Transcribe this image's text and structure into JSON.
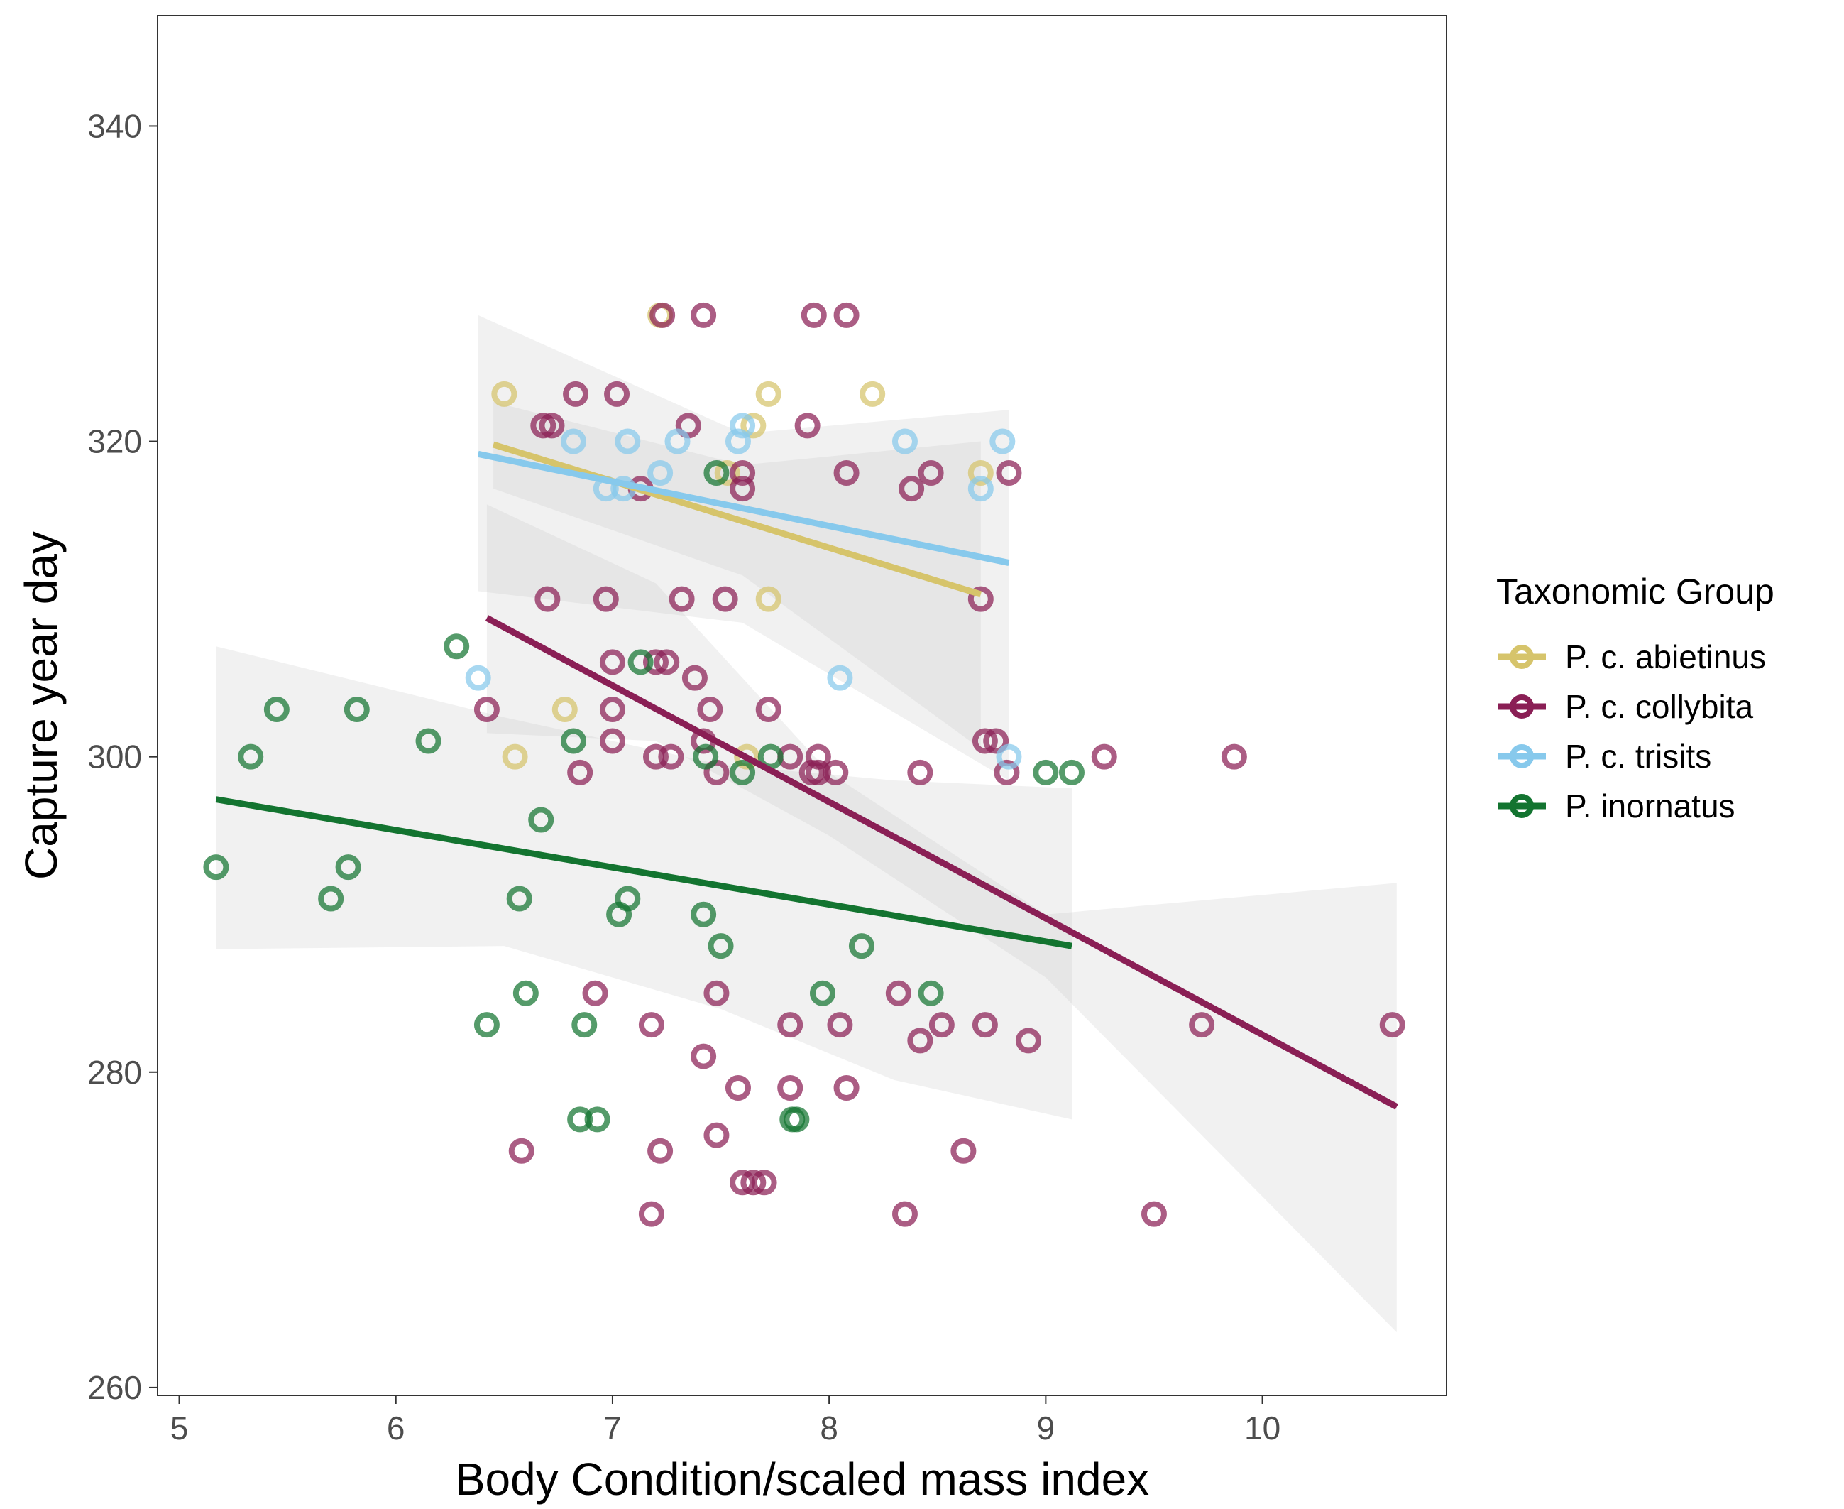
{
  "chart_data": {
    "type": "scatter",
    "title": "",
    "xlabel": "Body Condition/scaled mass index",
    "ylabel": "Capture year day",
    "xlim": [
      4.9,
      10.85
    ],
    "ylim": [
      259.5,
      347
    ],
    "x_ticks": [
      "5",
      "6",
      "7",
      "8",
      "9",
      "10"
    ],
    "y_ticks": [
      "260",
      "280",
      "300",
      "320",
      "340"
    ],
    "grid": false,
    "legend": {
      "title": "Taxonomic Group",
      "position": "right"
    },
    "series": [
      {
        "name": "P. c. abietinus",
        "color": "#D6C46B",
        "points": [
          [
            6.5,
            323
          ],
          [
            6.55,
            300
          ],
          [
            6.78,
            303
          ],
          [
            7.22,
            328
          ],
          [
            7.53,
            318
          ],
          [
            7.62,
            300
          ],
          [
            7.65,
            321
          ],
          [
            7.72,
            323
          ],
          [
            7.72,
            310
          ],
          [
            8.2,
            323
          ],
          [
            8.7,
            318
          ]
        ],
        "trend": [
          [
            6.45,
            319.8
          ],
          [
            8.7,
            310.3
          ]
        ],
        "ci_upper": [
          [
            6.45,
            322.5
          ],
          [
            7.6,
            318.5
          ],
          [
            8.7,
            320
          ]
        ],
        "ci_lower": [
          [
            6.45,
            317
          ],
          [
            7.6,
            311.5
          ],
          [
            8.7,
            300.5
          ]
        ]
      },
      {
        "name": "P. c. collybita",
        "color": "#8A1F55",
        "points": [
          [
            6.42,
            303
          ],
          [
            6.68,
            321
          ],
          [
            6.72,
            321
          ],
          [
            6.83,
            323
          ],
          [
            6.7,
            310
          ],
          [
            6.97,
            310
          ],
          [
            7.0,
            306
          ],
          [
            7.0,
            303
          ],
          [
            7.0,
            301
          ],
          [
            7.02,
            323
          ],
          [
            7.13,
            317
          ],
          [
            7.2,
            306
          ],
          [
            7.25,
            306
          ],
          [
            7.2,
            300
          ],
          [
            7.27,
            300
          ],
          [
            7.32,
            310
          ],
          [
            7.35,
            321
          ],
          [
            7.38,
            305
          ],
          [
            7.42,
            301
          ],
          [
            7.45,
            303
          ],
          [
            7.48,
            299
          ],
          [
            7.52,
            310
          ],
          [
            7.6,
            318
          ],
          [
            7.6,
            317
          ],
          [
            7.72,
            303
          ],
          [
            7.82,
            300
          ],
          [
            7.9,
            321
          ],
          [
            7.92,
            299
          ],
          [
            7.95,
            300
          ],
          [
            7.95,
            299
          ],
          [
            8.03,
            299
          ],
          [
            8.08,
            318
          ],
          [
            8.38,
            317
          ],
          [
            8.42,
            299
          ],
          [
            8.47,
            318
          ],
          [
            8.7,
            310
          ],
          [
            8.72,
            301
          ],
          [
            8.77,
            301
          ],
          [
            8.82,
            299
          ],
          [
            8.83,
            318
          ],
          [
            9.27,
            300
          ],
          [
            9.87,
            300
          ],
          [
            7.23,
            328
          ],
          [
            7.42,
            328
          ],
          [
            7.93,
            328
          ],
          [
            8.08,
            328
          ],
          [
            6.85,
            299
          ],
          [
            6.92,
            285
          ],
          [
            7.18,
            283
          ],
          [
            7.42,
            281
          ],
          [
            7.48,
            285
          ],
          [
            7.58,
            279
          ],
          [
            7.82,
            283
          ],
          [
            7.82,
            279
          ],
          [
            8.05,
            283
          ],
          [
            8.08,
            279
          ],
          [
            8.32,
            285
          ],
          [
            8.42,
            282
          ],
          [
            8.52,
            283
          ],
          [
            8.72,
            283
          ],
          [
            8.92,
            282
          ],
          [
            9.72,
            283
          ],
          [
            10.6,
            283
          ],
          [
            6.58,
            275
          ],
          [
            7.22,
            275
          ],
          [
            7.48,
            276
          ],
          [
            7.6,
            273
          ],
          [
            7.65,
            273
          ],
          [
            7.7,
            273
          ],
          [
            7.18,
            271
          ],
          [
            8.35,
            271
          ],
          [
            9.5,
            271
          ],
          [
            8.62,
            275
          ]
        ],
        "trend": [
          [
            6.42,
            308.8
          ],
          [
            10.62,
            277.8
          ]
        ],
        "ci_upper": [
          [
            6.42,
            316
          ],
          [
            7.2,
            311
          ],
          [
            8.0,
            299
          ],
          [
            9.0,
            290
          ],
          [
            10.62,
            292
          ]
        ],
        "ci_lower": [
          [
            6.42,
            301.5
          ],
          [
            7.2,
            301
          ],
          [
            8.0,
            295
          ],
          [
            9.0,
            286
          ],
          [
            10.62,
            263.5
          ]
        ]
      },
      {
        "name": "P. c. trisits",
        "color": "#87C9EC",
        "points": [
          [
            6.38,
            305
          ],
          [
            6.82,
            320
          ],
          [
            6.97,
            317
          ],
          [
            7.05,
            317
          ],
          [
            7.07,
            320
          ],
          [
            7.22,
            318
          ],
          [
            7.3,
            320
          ],
          [
            7.58,
            320
          ],
          [
            7.6,
            321
          ],
          [
            8.05,
            305
          ],
          [
            8.35,
            320
          ],
          [
            8.7,
            317
          ],
          [
            8.8,
            320
          ],
          [
            8.83,
            300
          ]
        ],
        "trend": [
          [
            6.38,
            319.2
          ],
          [
            8.83,
            312.3
          ]
        ],
        "ci_upper": [
          [
            6.38,
            328
          ],
          [
            7.6,
            320.5
          ],
          [
            8.83,
            322
          ]
        ],
        "ci_lower": [
          [
            6.38,
            310.5
          ],
          [
            7.6,
            308.5
          ],
          [
            8.83,
            298.5
          ]
        ]
      },
      {
        "name": "P. inornatus",
        "color": "#137430",
        "points": [
          [
            5.17,
            293
          ],
          [
            5.33,
            300
          ],
          [
            5.45,
            303
          ],
          [
            5.7,
            291
          ],
          [
            5.78,
            293
          ],
          [
            5.82,
            303
          ],
          [
            6.15,
            301
          ],
          [
            6.28,
            307
          ],
          [
            6.42,
            283
          ],
          [
            6.57,
            291
          ],
          [
            6.6,
            285
          ],
          [
            6.67,
            296
          ],
          [
            6.82,
            301
          ],
          [
            6.85,
            277
          ],
          [
            6.87,
            283
          ],
          [
            6.93,
            277
          ],
          [
            7.03,
            290
          ],
          [
            7.07,
            291
          ],
          [
            7.13,
            306
          ],
          [
            7.42,
            290
          ],
          [
            7.43,
            300
          ],
          [
            7.48,
            318
          ],
          [
            7.5,
            288
          ],
          [
            7.6,
            299
          ],
          [
            7.73,
            300
          ],
          [
            7.83,
            277
          ],
          [
            7.85,
            277
          ],
          [
            7.97,
            285
          ],
          [
            8.15,
            288
          ],
          [
            8.47,
            285
          ],
          [
            9.0,
            299
          ],
          [
            9.12,
            299
          ]
        ],
        "trend": [
          [
            5.17,
            297.3
          ],
          [
            9.12,
            288
          ]
        ],
        "ci_upper": [
          [
            5.17,
            307
          ],
          [
            6.5,
            302.5
          ],
          [
            7.5,
            299.5
          ],
          [
            8.3,
            298.5
          ],
          [
            9.12,
            298
          ]
        ],
        "ci_lower": [
          [
            5.17,
            287.8
          ],
          [
            6.5,
            288
          ],
          [
            7.5,
            284
          ],
          [
            8.3,
            279.5
          ],
          [
            9.12,
            277
          ]
        ]
      }
    ]
  }
}
